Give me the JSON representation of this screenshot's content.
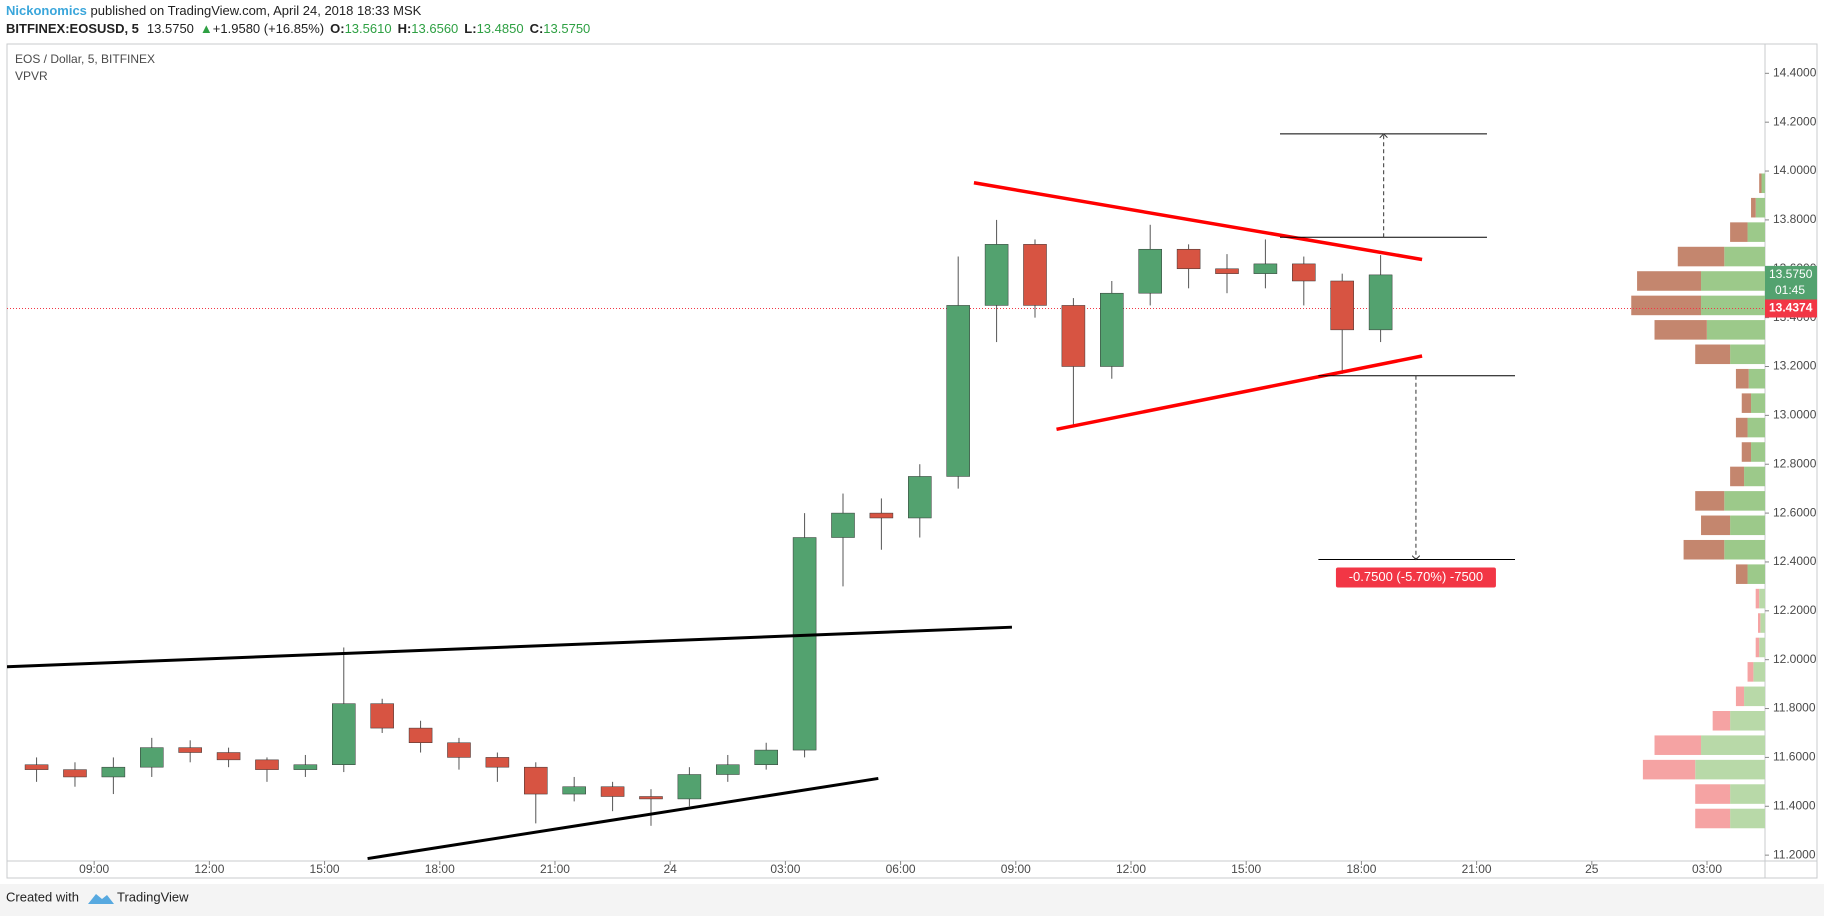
{
  "header": {
    "author": "Nickonomics",
    "published": " published on TradingView.com, April 24, 2018 18:33 MSK",
    "symbol": "BITFINEX:EOSUSD, 5",
    "last": "13.5750",
    "arrow": "▲",
    "change": "+1.9580 (+16.85%)",
    "ohlc": [
      {
        "label": "O:",
        "value": "13.5610"
      },
      {
        "label": "H:",
        "value": "13.6560"
      },
      {
        "label": "L:",
        "value": "13.4850"
      },
      {
        "label": "C:",
        "value": "13.5750"
      }
    ]
  },
  "footer": {
    "created": "Created with",
    "brand": "TradingView"
  },
  "chart_data": {
    "type": "candlestick",
    "title": "EOS / Dollar, 5, BITFINEX",
    "indicator": "VPVR",
    "xlim": [
      6.73,
      52.51
    ],
    "xticks": [
      {
        "value": 9,
        "label": "09:00"
      },
      {
        "value": 12,
        "label": "12:00"
      },
      {
        "value": 15,
        "label": "15:00"
      },
      {
        "value": 18,
        "label": "18:00"
      },
      {
        "value": 21,
        "label": "21:00"
      },
      24,
      {
        "value": 27,
        "label": "03:00"
      },
      {
        "value": 30,
        "label": "06:00"
      },
      {
        "value": 33,
        "label": "09:00"
      },
      {
        "value": 36,
        "label": "12:00"
      },
      {
        "value": 39,
        "label": "15:00"
      },
      {
        "value": 42,
        "label": "18:00"
      },
      {
        "value": 45,
        "label": "21:00"
      },
      {
        "value": 48,
        "label": "25"
      },
      {
        "value": 51,
        "label": "03:00"
      }
    ],
    "ylim": [
      11.176,
      14.52
    ],
    "yticks": [
      {
        "value": 11.2,
        "label": "11.2000"
      },
      {
        "value": 11.4,
        "label": "11.4000"
      },
      {
        "value": 11.6,
        "label": "11.6000"
      },
      {
        "value": 11.8,
        "label": "11.8000"
      },
      {
        "value": 12.0,
        "label": "12.0000"
      },
      {
        "value": 12.2,
        "label": "12.2000"
      },
      {
        "value": 12.4,
        "label": "12.4000"
      },
      {
        "value": 12.6,
        "label": "12.6000"
      },
      {
        "value": 12.8,
        "label": "12.8000"
      },
      {
        "value": 13.0,
        "label": "13.0000"
      },
      {
        "value": 13.2,
        "label": "13.2000"
      },
      {
        "value": 13.4,
        "label": "13.4000"
      },
      {
        "value": 13.6,
        "label": "13.6000"
      },
      {
        "value": 13.8,
        "label": "13.8000"
      },
      {
        "value": 14.0,
        "label": "14.0000"
      },
      {
        "value": 14.2,
        "label": "14.2000"
      },
      {
        "value": 14.4,
        "label": "14.4000"
      }
    ],
    "grid": false,
    "up_color": "#53a26f",
    "down_color": "#d75442",
    "wick_color": "#555555",
    "x": [
      7,
      8,
      9,
      10,
      11,
      12,
      13,
      14,
      15,
      16,
      17,
      18,
      19,
      20,
      21,
      22,
      23,
      24,
      25,
      26,
      27,
      28,
      29,
      30,
      31,
      32,
      33,
      34,
      35,
      36,
      37,
      38,
      39,
      40,
      41,
      42
    ],
    "open": [
      11.57,
      11.55,
      11.52,
      11.56,
      11.64,
      11.62,
      11.59,
      11.55,
      11.57,
      11.82,
      11.72,
      11.66,
      11.6,
      11.56,
      11.45,
      11.48,
      11.44,
      11.43,
      11.53,
      11.57,
      11.63,
      12.5,
      12.6,
      12.58,
      12.75,
      13.45,
      13.7,
      13.45,
      13.2,
      13.5,
      13.68,
      13.6,
      13.58,
      13.62,
      13.55,
      13.35
    ],
    "high": [
      11.6,
      11.58,
      11.6,
      11.68,
      11.67,
      11.64,
      11.6,
      11.61,
      12.05,
      11.84,
      11.75,
      11.68,
      11.62,
      11.58,
      11.52,
      11.5,
      11.47,
      11.56,
      11.61,
      11.66,
      12.6,
      12.68,
      12.66,
      12.8,
      13.65,
      13.8,
      13.72,
      13.48,
      13.55,
      13.78,
      13.7,
      13.66,
      13.72,
      13.65,
      13.58,
      13.656
    ],
    "low": [
      11.5,
      11.48,
      11.45,
      11.52,
      11.58,
      11.56,
      11.5,
      11.52,
      11.54,
      11.7,
      11.62,
      11.55,
      11.5,
      11.33,
      11.42,
      11.38,
      11.32,
      11.4,
      11.5,
      11.55,
      11.6,
      12.3,
      12.45,
      12.5,
      12.7,
      13.3,
      13.4,
      12.96,
      13.15,
      13.45,
      13.52,
      13.5,
      13.52,
      13.45,
      13.17,
      13.3
    ],
    "close": [
      11.55,
      11.52,
      11.56,
      11.64,
      11.62,
      11.59,
      11.55,
      11.57,
      11.82,
      11.72,
      11.66,
      11.6,
      11.56,
      11.45,
      11.48,
      11.44,
      11.43,
      11.53,
      11.57,
      11.63,
      12.5,
      12.6,
      12.58,
      12.75,
      13.45,
      13.7,
      13.45,
      13.2,
      13.5,
      13.68,
      13.6,
      13.58,
      13.62,
      13.55,
      13.35,
      13.575
    ],
    "last_price": {
      "value": 13.575,
      "label": "13.5750",
      "color": "#53a26f"
    },
    "countdown": "01:45",
    "marker_price": {
      "value": 13.4374,
      "label": "13.4374",
      "color": "#f23645"
    },
    "volume_profile": {
      "levels": [
        11.35,
        11.45,
        11.55,
        11.65,
        11.75,
        11.85,
        11.95,
        12.05,
        12.15,
        12.25,
        12.35,
        12.45,
        12.55,
        12.65,
        12.75,
        12.85,
        12.95,
        13.05,
        13.15,
        13.25,
        13.35,
        13.45,
        13.55,
        13.65,
        13.75,
        13.85,
        13.95
      ],
      "up": [
        30,
        30,
        60,
        55,
        30,
        18,
        10,
        5,
        4,
        5,
        15,
        35,
        30,
        35,
        18,
        12,
        15,
        12,
        14,
        30,
        50,
        55,
        55,
        35,
        15,
        8,
        3
      ],
      "down": [
        30,
        30,
        45,
        40,
        15,
        7,
        5,
        3,
        2,
        3,
        10,
        35,
        25,
        25,
        12,
        8,
        10,
        8,
        11,
        30,
        45,
        60,
        55,
        40,
        15,
        4,
        2
      ],
      "value_area": [
        12.3,
        14.0
      ],
      "colors": {
        "up_in": "#9cc98a",
        "down_in": "#c4866e",
        "up_out": "#b8d9a8",
        "down_out": "#f5a3a3"
      }
    },
    "drawings": [
      {
        "color": "#000000",
        "width": 3,
        "x": [
          6.73,
          32.9
        ],
        "y": [
          11.971,
          12.133
        ]
      },
      {
        "color": "#000000",
        "width": 3,
        "x": [
          16.12,
          29.42
        ],
        "y": [
          11.186,
          11.514
        ]
      },
      {
        "color": "#ff0000",
        "width": 3.5,
        "x": [
          31.91,
          43.58
        ],
        "y": [
          13.952,
          13.638
        ]
      },
      {
        "color": "#ff0000",
        "width": 3.5,
        "x": [
          34.06,
          43.58
        ],
        "y": [
          12.943,
          13.243
        ]
      },
      {
        "color": "#000000",
        "width": 1,
        "x": [
          39.88,
          45.27
        ],
        "y": [
          14.152,
          14.152
        ]
      },
      {
        "color": "#000000",
        "width": 1,
        "x": [
          39.88,
          45.27
        ],
        "y": [
          13.729,
          13.729
        ]
      },
      {
        "color": "#000000",
        "width": 1,
        "x": [
          40.88,
          46.0
        ],
        "y": [
          13.162,
          13.162
        ]
      },
      {
        "color": "#000000",
        "width": 1,
        "x": [
          40.88,
          46.0
        ],
        "y": [
          12.41,
          12.41
        ]
      },
      {
        "color": "#333333",
        "width": 1,
        "dashed": true,
        "arrow": true,
        "x": [
          42.58,
          42.58
        ],
        "y": [
          13.729,
          14.152
        ]
      },
      {
        "color": "#333333",
        "width": 1,
        "dashed": true,
        "arrow": true,
        "x": [
          43.42,
          43.42
        ],
        "y": [
          13.162,
          12.41
        ],
        "label": "-0.7500 (-5.70%) -7500",
        "label_color": "#f23645"
      }
    ]
  }
}
